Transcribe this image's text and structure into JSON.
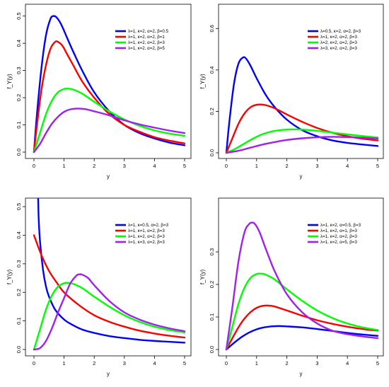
{
  "colors": {
    "blue": "#0000ff",
    "red": "#ff0000",
    "green": "#00ff00",
    "purple": "#a020f0"
  },
  "chart_data": [
    {
      "type": "line",
      "xlabel": "y",
      "ylabel": "f_Y(y)",
      "xlim": [
        0,
        5
      ],
      "ylim": [
        0,
        0.52
      ],
      "xticks": [
        "0",
        "1",
        "2",
        "3",
        "4",
        "5"
      ],
      "yticks": [
        "0.0",
        "0.1",
        "0.2",
        "0.3",
        "0.4",
        "0.5"
      ],
      "legend_position": "top-right",
      "grid": false,
      "series": [
        {
          "name": "λ=1, κ=2, α=2, β=0.5",
          "color": "#0000ff",
          "x": [
            0,
            0.1,
            0.25,
            0.4,
            0.55,
            0.65,
            0.75,
            0.9,
            1.1,
            1.3,
            1.6,
            2.0,
            2.5,
            3.0,
            3.5,
            4.0,
            4.5,
            5.0
          ],
          "y": [
            0,
            0.14,
            0.31,
            0.43,
            0.49,
            0.5,
            0.495,
            0.47,
            0.42,
            0.37,
            0.3,
            0.22,
            0.15,
            0.1,
            0.07,
            0.05,
            0.035,
            0.025
          ]
        },
        {
          "name": "λ=1, κ=2, α=2, β=1",
          "color": "#ff0000",
          "x": [
            0,
            0.1,
            0.25,
            0.4,
            0.55,
            0.7,
            0.8,
            0.95,
            1.1,
            1.3,
            1.6,
            2.0,
            2.5,
            3.0,
            3.5,
            4.0,
            4.5,
            5.0
          ],
          "y": [
            0,
            0.1,
            0.23,
            0.32,
            0.38,
            0.405,
            0.405,
            0.39,
            0.36,
            0.32,
            0.26,
            0.2,
            0.14,
            0.1,
            0.075,
            0.055,
            0.042,
            0.032
          ]
        },
        {
          "name": "λ=1, κ=2, α=2, β=3",
          "color": "#00ff00",
          "x": [
            0,
            0.2,
            0.4,
            0.6,
            0.8,
            1.0,
            1.15,
            1.3,
            1.6,
            2.0,
            2.5,
            3.0,
            3.5,
            4.0,
            4.5,
            5.0
          ],
          "y": [
            0,
            0.07,
            0.14,
            0.19,
            0.22,
            0.232,
            0.233,
            0.23,
            0.215,
            0.185,
            0.15,
            0.12,
            0.097,
            0.08,
            0.068,
            0.06
          ]
        },
        {
          "name": "λ=1, κ=2, α=2, β=5",
          "color": "#a020f0",
          "x": [
            0,
            0.2,
            0.4,
            0.6,
            0.8,
            1.0,
            1.2,
            1.45,
            1.7,
            2.0,
            2.5,
            3.0,
            3.5,
            4.0,
            4.5,
            5.0
          ],
          "y": [
            0,
            0.03,
            0.07,
            0.105,
            0.13,
            0.148,
            0.157,
            0.16,
            0.158,
            0.15,
            0.135,
            0.117,
            0.102,
            0.09,
            0.079,
            0.07
          ]
        }
      ]
    },
    {
      "type": "line",
      "xlabel": "y",
      "ylabel": "f_Y(y)",
      "xlim": [
        0,
        5
      ],
      "ylim": [
        0,
        0.7
      ],
      "xticks": [
        "0",
        "1",
        "2",
        "3",
        "4",
        "5"
      ],
      "yticks": [
        "0.0",
        "0.2",
        "0.4",
        "0.6"
      ],
      "legend_position": "top-right",
      "grid": false,
      "series": [
        {
          "name": "λ=0.5, κ=2, α=2, β=3",
          "color": "#0000ff",
          "x": [
            0,
            0.1,
            0.25,
            0.4,
            0.55,
            0.65,
            0.8,
            1.0,
            1.3,
            1.6,
            2.0,
            2.5,
            3.0,
            3.5,
            4.0,
            4.5,
            5.0
          ],
          "y": [
            0,
            0.15,
            0.33,
            0.43,
            0.46,
            0.455,
            0.42,
            0.36,
            0.28,
            0.22,
            0.16,
            0.11,
            0.08,
            0.06,
            0.048,
            0.04,
            0.033
          ]
        },
        {
          "name": "λ=1, κ=2, α=2, β=3",
          "color": "#ff0000",
          "x": [
            0,
            0.2,
            0.4,
            0.6,
            0.8,
            1.0,
            1.15,
            1.3,
            1.6,
            2.0,
            2.5,
            3.0,
            3.5,
            4.0,
            4.5,
            5.0
          ],
          "y": [
            0,
            0.07,
            0.14,
            0.19,
            0.22,
            0.232,
            0.233,
            0.23,
            0.215,
            0.185,
            0.15,
            0.12,
            0.097,
            0.08,
            0.068,
            0.06
          ]
        },
        {
          "name": "λ=2, κ=2, α=2, β=3",
          "color": "#00ff00",
          "x": [
            0,
            0.3,
            0.6,
            0.9,
            1.2,
            1.5,
            1.8,
            2.1,
            2.4,
            2.8,
            3.2,
            3.6,
            4.0,
            4.5,
            5.0
          ],
          "y": [
            0,
            0.02,
            0.045,
            0.07,
            0.09,
            0.103,
            0.11,
            0.113,
            0.113,
            0.109,
            0.103,
            0.096,
            0.089,
            0.081,
            0.074
          ]
        },
        {
          "name": "λ=3, κ=2, α=2, β=3",
          "color": "#a020f0",
          "x": [
            0,
            0.4,
            0.8,
            1.2,
            1.6,
            2.0,
            2.5,
            3.0,
            3.5,
            4.0,
            4.5,
            5.0
          ],
          "y": [
            0,
            0.01,
            0.025,
            0.04,
            0.052,
            0.062,
            0.07,
            0.075,
            0.077,
            0.076,
            0.073,
            0.069
          ]
        }
      ]
    },
    {
      "type": "line",
      "xlabel": "y",
      "ylabel": "f_Y(y)",
      "xlim": [
        0,
        5
      ],
      "ylim": [
        0,
        0.52
      ],
      "xticks": [
        "0",
        "1",
        "2",
        "3",
        "4",
        "5"
      ],
      "yticks": [
        "0.0",
        "0.1",
        "0.2",
        "0.3",
        "0.4",
        "0.5"
      ],
      "legend_position": "top-right",
      "grid": false,
      "series": [
        {
          "name": "λ=1, κ=0.5, α=2, β=3",
          "color": "#0000ff",
          "x": [
            0.1,
            0.15,
            0.2,
            0.3,
            0.4,
            0.5,
            0.7,
            1.0,
            1.3,
            1.6,
            2.0,
            2.5,
            3.0,
            3.5,
            4.0,
            4.5,
            5.0
          ],
          "y": [
            0.72,
            0.48,
            0.38,
            0.28,
            0.22,
            0.185,
            0.14,
            0.105,
            0.085,
            0.07,
            0.058,
            0.047,
            0.04,
            0.034,
            0.03,
            0.027,
            0.024
          ]
        },
        {
          "name": "λ=1, κ=1, α=2, β=3",
          "color": "#ff0000",
          "x": [
            0,
            0.25,
            0.5,
            0.75,
            1.0,
            1.5,
            2.0,
            2.5,
            3.0,
            3.5,
            4.0,
            4.5,
            5.0
          ],
          "y": [
            0.4,
            0.33,
            0.275,
            0.235,
            0.2,
            0.155,
            0.12,
            0.097,
            0.08,
            0.066,
            0.056,
            0.048,
            0.042
          ]
        },
        {
          "name": "λ=1, κ=2, α=2, β=3",
          "color": "#00ff00",
          "x": [
            0,
            0.2,
            0.4,
            0.6,
            0.8,
            1.0,
            1.15,
            1.3,
            1.6,
            2.0,
            2.5,
            3.0,
            3.5,
            4.0,
            4.5,
            5.0
          ],
          "y": [
            0,
            0.07,
            0.14,
            0.19,
            0.22,
            0.232,
            0.233,
            0.23,
            0.215,
            0.185,
            0.15,
            0.12,
            0.097,
            0.08,
            0.068,
            0.06
          ]
        },
        {
          "name": "λ=1, κ=3, α=2, β=3",
          "color": "#a020f0",
          "x": [
            0,
            0.2,
            0.4,
            0.6,
            0.8,
            1.0,
            1.2,
            1.4,
            1.5,
            1.6,
            1.8,
            2.0,
            2.5,
            3.0,
            3.5,
            4.0,
            4.5,
            5.0
          ],
          "y": [
            0,
            0.005,
            0.03,
            0.075,
            0.13,
            0.18,
            0.23,
            0.258,
            0.263,
            0.262,
            0.25,
            0.225,
            0.17,
            0.13,
            0.105,
            0.087,
            0.074,
            0.064
          ]
        }
      ]
    },
    {
      "type": "line",
      "xlabel": "y",
      "ylabel": "f_Y(y)",
      "xlim": [
        0,
        5
      ],
      "ylim": [
        0,
        0.4
      ],
      "xticks": [
        "0",
        "1",
        "2",
        "3",
        "4",
        "5"
      ],
      "yticks": [
        "0.0",
        "0.1",
        "0.2",
        "0.3"
      ],
      "legend_position": "top-right",
      "grid": false,
      "series": [
        {
          "name": "λ=1, κ=2, α=0.5, β=3",
          "color": "#0000ff",
          "x": [
            0,
            0.25,
            0.5,
            0.75,
            1.0,
            1.25,
            1.5,
            1.75,
            2.0,
            2.5,
            3.0,
            3.5,
            4.0,
            4.5,
            5.0
          ],
          "y": [
            0,
            0.02,
            0.038,
            0.052,
            0.062,
            0.068,
            0.071,
            0.072,
            0.071,
            0.068,
            0.063,
            0.057,
            0.051,
            0.046,
            0.042
          ]
        },
        {
          "name": "λ=1, κ=2, α=1, β=3",
          "color": "#ff0000",
          "x": [
            0,
            0.2,
            0.4,
            0.6,
            0.8,
            1.0,
            1.2,
            1.4,
            1.6,
            2.0,
            2.5,
            3.0,
            3.5,
            4.0,
            4.5,
            5.0
          ],
          "y": [
            0,
            0.035,
            0.068,
            0.095,
            0.115,
            0.128,
            0.134,
            0.135,
            0.132,
            0.12,
            0.104,
            0.09,
            0.079,
            0.07,
            0.063,
            0.058
          ]
        },
        {
          "name": "λ=1, κ=2, α=2, β=3",
          "color": "#00ff00",
          "x": [
            0,
            0.2,
            0.4,
            0.6,
            0.8,
            1.0,
            1.15,
            1.3,
            1.6,
            2.0,
            2.5,
            3.0,
            3.5,
            4.0,
            4.5,
            5.0
          ],
          "y": [
            0,
            0.07,
            0.14,
            0.19,
            0.22,
            0.232,
            0.233,
            0.23,
            0.215,
            0.185,
            0.15,
            0.12,
            0.097,
            0.08,
            0.068,
            0.06
          ]
        },
        {
          "name": "λ=1, κ=2, α=5, β=3",
          "color": "#a020f0",
          "x": [
            0,
            0.2,
            0.4,
            0.6,
            0.75,
            0.85,
            0.95,
            1.1,
            1.3,
            1.6,
            2.0,
            2.5,
            3.0,
            3.5,
            4.0,
            4.5,
            5.0
          ],
          "y": [
            0,
            0.13,
            0.27,
            0.36,
            0.385,
            0.39,
            0.385,
            0.36,
            0.31,
            0.24,
            0.17,
            0.115,
            0.08,
            0.058,
            0.047,
            0.04,
            0.035
          ]
        }
      ]
    }
  ]
}
